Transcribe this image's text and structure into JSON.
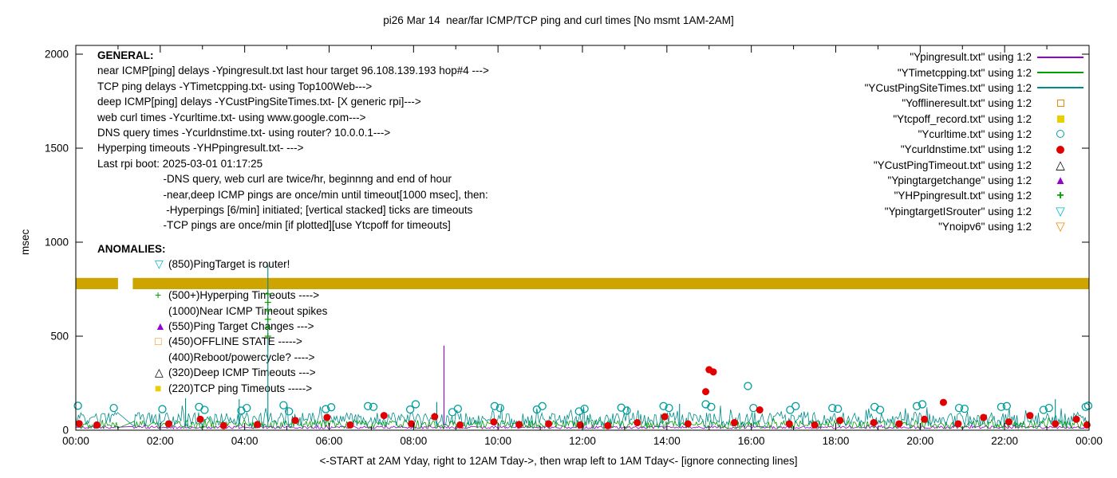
{
  "chart_data": {
    "type": "line",
    "title": "pi26 Mar 14  near/far ICMP/TCP ping and curl times [No msmt 1AM-2AM]",
    "xlabel": "<-START at 2AM Yday, right to 12AM Tday->, then wrap left to 1AM Tday<- [ignore connecting lines]",
    "ylabel": "msec",
    "ylim": [
      0,
      2000
    ],
    "y_ticks": [
      0,
      500,
      1000,
      1500,
      2000
    ],
    "x_range_hours": [
      0,
      24
    ],
    "x_tick_labels": [
      "00:00",
      "02:00",
      "04:00",
      "06:00",
      "08:00",
      "10:00",
      "12:00",
      "14:00",
      "16:00",
      "18:00",
      "20:00",
      "22:00",
      "00:00"
    ],
    "no_measurement_gap_hours": [
      1.0,
      1.35
    ],
    "band": {
      "name": "Ynoipv6 timeout band",
      "color": "#CDA400",
      "y_center": 780,
      "y_half_width": 30,
      "segments_hours": [
        [
          0,
          1.0
        ],
        [
          1.35,
          24
        ]
      ]
    },
    "noisy_lines": [
      {
        "name": "Ypingresult near ICMP ping",
        "color": "#9400D3",
        "baseline": 8,
        "amplitude": 14,
        "spike_chance": 0.08,
        "spike_factor": 1.5,
        "seed": 11,
        "spikes": [
          {
            "x": 8.72,
            "y": 450
          }
        ]
      },
      {
        "name": "YTimetcpping TCP ping",
        "color": "#00A000",
        "baseline": 8,
        "amplitude": 45,
        "spike_chance": 0.1,
        "spike_factor": 1.3,
        "seed": 22,
        "spikes": []
      },
      {
        "name": "YCustPingSiteTimes deep ICMP ping",
        "color": "#008B8B",
        "baseline": 20,
        "amplitude": 75,
        "spike_chance": 0.1,
        "spike_factor": 1.5,
        "seed": 33,
        "spikes": [
          {
            "x": 2.6,
            "y": 170
          },
          {
            "x": 3.87,
            "y": 165
          },
          {
            "x": 4.55,
            "y": 880
          },
          {
            "x": 8.55,
            "y": 150
          },
          {
            "x": 14.3,
            "y": 140
          },
          {
            "x": 23.2,
            "y": 165
          }
        ]
      }
    ],
    "scatter": [
      {
        "name": "Ycurltime web curl times",
        "marker": "circle-open",
        "color": "#009E9E",
        "points": [
          [
            0.05,
            130
          ],
          [
            0.9,
            118
          ],
          [
            2.05,
            112
          ],
          [
            2.92,
            124
          ],
          [
            3.05,
            108
          ],
          [
            3.92,
            104
          ],
          [
            4.05,
            118
          ],
          [
            4.92,
            133
          ],
          [
            5.05,
            100
          ],
          [
            5.92,
            112
          ],
          [
            6.05,
            122
          ],
          [
            6.92,
            128
          ],
          [
            7.05,
            124
          ],
          [
            7.92,
            110
          ],
          [
            8.05,
            138
          ],
          [
            8.92,
            96
          ],
          [
            9.05,
            114
          ],
          [
            9.92,
            128
          ],
          [
            10.05,
            118
          ],
          [
            10.92,
            110
          ],
          [
            11.05,
            128
          ],
          [
            11.92,
            100
          ],
          [
            12.05,
            114
          ],
          [
            12.92,
            120
          ],
          [
            13.05,
            104
          ],
          [
            13.92,
            128
          ],
          [
            14.05,
            118
          ],
          [
            14.92,
            138
          ],
          [
            15.05,
            124
          ],
          [
            15.92,
            235
          ],
          [
            16.05,
            118
          ],
          [
            16.92,
            108
          ],
          [
            17.05,
            128
          ],
          [
            17.92,
            118
          ],
          [
            18.05,
            114
          ],
          [
            18.92,
            124
          ],
          [
            19.05,
            108
          ],
          [
            19.92,
            128
          ],
          [
            20.05,
            138
          ],
          [
            20.92,
            118
          ],
          [
            21.05,
            114
          ],
          [
            21.92,
            124
          ],
          [
            22.05,
            128
          ],
          [
            22.92,
            108
          ],
          [
            23.05,
            118
          ],
          [
            23.92,
            124
          ],
          [
            23.98,
            130
          ]
        ]
      },
      {
        "name": "Ycurldnstime DNS query times",
        "marker": "circle-filled",
        "color": "#E00000",
        "points": [
          [
            0.08,
            35
          ],
          [
            0.5,
            28
          ],
          [
            2.2,
            34
          ],
          [
            2.95,
            58
          ],
          [
            3.5,
            24
          ],
          [
            4.3,
            30
          ],
          [
            5.2,
            52
          ],
          [
            5.95,
            68
          ],
          [
            6.5,
            28
          ],
          [
            7.3,
            78
          ],
          [
            7.95,
            34
          ],
          [
            8.5,
            72
          ],
          [
            9.1,
            28
          ],
          [
            9.9,
            44
          ],
          [
            10.5,
            30
          ],
          [
            11.2,
            34
          ],
          [
            11.95,
            28
          ],
          [
            12.6,
            24
          ],
          [
            13.3,
            40
          ],
          [
            13.95,
            72
          ],
          [
            14.5,
            34
          ],
          [
            14.92,
            205
          ],
          [
            15.0,
            322
          ],
          [
            15.1,
            310
          ],
          [
            15.6,
            40
          ],
          [
            16.2,
            108
          ],
          [
            16.9,
            34
          ],
          [
            17.5,
            28
          ],
          [
            18.1,
            52
          ],
          [
            18.9,
            40
          ],
          [
            19.5,
            34
          ],
          [
            20.1,
            58
          ],
          [
            20.55,
            148
          ],
          [
            20.9,
            34
          ],
          [
            21.5,
            68
          ],
          [
            22.1,
            44
          ],
          [
            22.6,
            78
          ],
          [
            23.2,
            34
          ],
          [
            23.7,
            58
          ],
          [
            23.95,
            28
          ]
        ]
      },
      {
        "name": "YHPpingresult hyperping timeout ticks",
        "marker": "plus",
        "color": "#00A000",
        "points": [
          [
            4.55,
            500
          ],
          [
            4.55,
            545
          ],
          [
            4.55,
            590
          ],
          [
            4.55,
            635
          ],
          [
            4.55,
            680
          ],
          [
            4.55,
            725
          ]
        ]
      }
    ]
  },
  "general": {
    "heading": "GENERAL:",
    "lines": [
      "near ICMP[ping] delays -Ypingresult.txt last hour target 96.108.139.193 hop#4 --->",
      "TCP ping delays -YTimetcpping.txt- using Top100Web--->",
      "deep ICMP[ping] delays -YCustPingSiteTimes.txt- [X generic rpi]--->",
      "web curl times -Ycurltime.txt- using www.google.com--->",
      "DNS query times -Ycurldnstime.txt- using router? 10.0.0.1--->",
      "Hyperping timeouts -YHPpingresult.txt- --->",
      "Last rpi boot: 2025-03-01 01:17:25",
      "                      -DNS query, web curl are twice/hr, beginnng and end of hour",
      "                      -near,deep ICMP pings are once/min until timeout[1000 msec], then:",
      "                       -Hyperpings [6/min] initiated; [vertical stacked] ticks are timeouts",
      "                      -TCP pings are once/min [if plotted][use Ytcpoff for timeouts]"
    ]
  },
  "anomalies": {
    "heading": "ANOMALIES:",
    "items": [
      {
        "glyph": "▽",
        "color": "#00B8C8",
        "icon_name": "cyan-down-triangle-icon",
        "text": "(850)PingTarget is router!"
      },
      {
        "glyph": "",
        "color": "",
        "icon_name": "occluded-row",
        "text": ""
      },
      {
        "glyph": "+",
        "color": "#00A000",
        "icon_name": "green-plus-icon",
        "text": "(500+)Hyperping Timeouts ---->"
      },
      {
        "glyph": "",
        "color": "",
        "icon_name": "none",
        "text": "(1000)Near ICMP Timeout spikes"
      },
      {
        "glyph": "▲",
        "color": "#9400D3",
        "icon_name": "violet-filled-triangle-icon",
        "text": "(550)Ping Target Changes --->"
      },
      {
        "glyph": "□",
        "color": "#EF8A00",
        "icon_name": "orange-open-square-icon",
        "text": "(450)OFFLINE STATE ----->"
      },
      {
        "glyph": "",
        "color": "",
        "icon_name": "none",
        "text": "(400)Reboot/powercycle? ---->"
      },
      {
        "glyph": "△",
        "color": "#000000",
        "icon_name": "black-open-triangle-icon",
        "text": "(320)Deep ICMP Timeouts --->"
      },
      {
        "glyph": "■",
        "color": "#E8D000",
        "icon_name": "yellow-filled-square-icon",
        "text": "(220)TCP ping Timeouts ----->"
      }
    ]
  },
  "legend": {
    "entries": [
      {
        "label": "\"Ypingresult.txt\" using 1:2",
        "marker": "line",
        "color": "#9400D3"
      },
      {
        "label": "\"YTimetcpping.txt\" using 1:2",
        "marker": "line",
        "color": "#00A000"
      },
      {
        "label": "\"YCustPingSiteTimes.txt\" using 1:2",
        "marker": "line",
        "color": "#008B8B"
      },
      {
        "label": "\"Yofflineresult.txt\" using 1:2",
        "marker": "square-open",
        "color": "#EF8A00"
      },
      {
        "label": "\"Ytcpoff_record.txt\" using 1:2",
        "marker": "square-filled",
        "color": "#E8D000"
      },
      {
        "label": "\"Ycurltime.txt\" using 1:2",
        "marker": "circle-open",
        "color": "#009E9E"
      },
      {
        "label": "\"Ycurldnstime.txt\" using 1:2",
        "marker": "circle-filled",
        "color": "#E00000"
      },
      {
        "label": "\"YCustPingTimeout.txt\" using 1:2",
        "marker": "triangle-open",
        "color": "#000000"
      },
      {
        "label": "\"Ypingtargetchange\" using 1:2",
        "marker": "triangle-filled",
        "color": "#9400D3"
      },
      {
        "label": "\"YHPpingresult.txt\" using 1:2",
        "marker": "plus",
        "color": "#00A000"
      },
      {
        "label": "\"YpingtargetISrouter\" using 1:2",
        "marker": "triangle-down-open",
        "color": "#00B8C8"
      },
      {
        "label": "\"Ynoipv6\" using 1:2",
        "marker": "triangle-down-open",
        "color": "#EF8A00"
      }
    ]
  }
}
